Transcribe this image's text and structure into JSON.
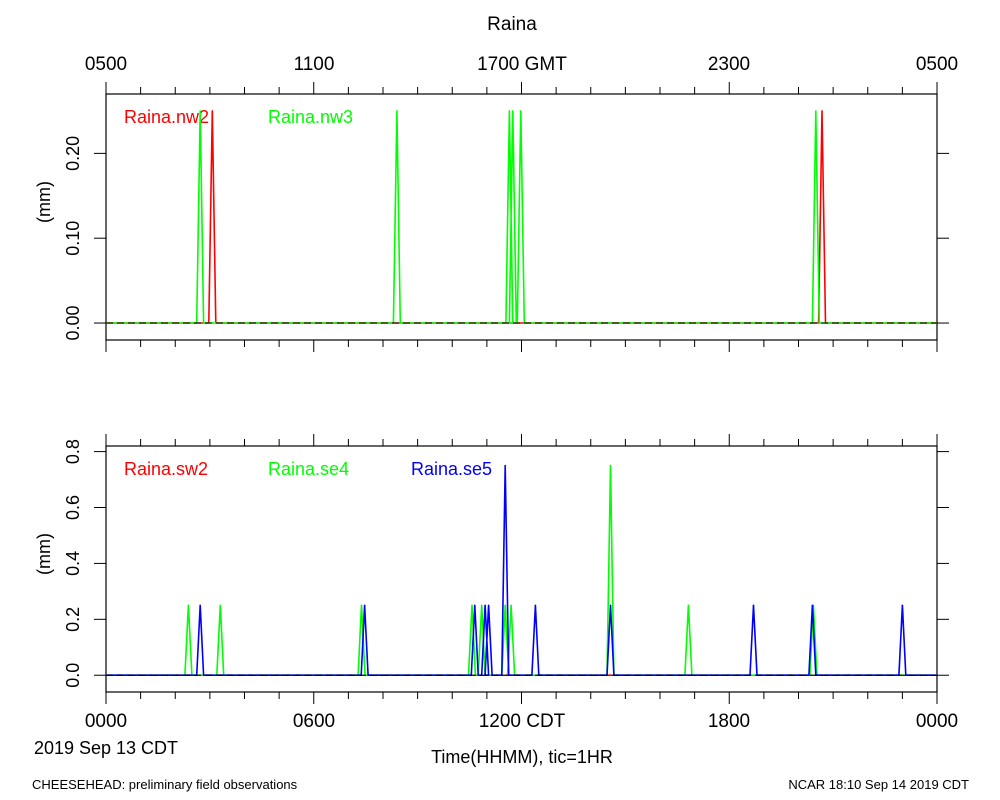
{
  "title": "Raina",
  "top_axis_labels": [
    "0500",
    "1100",
    "1700 GMT",
    "2300",
    "0500"
  ],
  "bottom_axis_labels": [
    "0000",
    "0600",
    "1200 CDT",
    "1800",
    "0000"
  ],
  "date_label": "2019 Sep 13 CDT",
  "xlabel": "Time(HHMM), tic=1HR",
  "footer_left": "CHEESEHEAD: preliminary field observations",
  "footer_right": "NCAR 18:10 Sep 14 2019 CDT",
  "colors": {
    "red": "#ff0000",
    "green": "#00ff00",
    "blue": "#0000ff",
    "axis": "#000000"
  },
  "chart_data": [
    {
      "type": "line",
      "panel": "top",
      "ylabel": "(mm)",
      "xlim": [
        0,
        24
      ],
      "ylim": [
        -0.02,
        0.27
      ],
      "yticks": [
        0.0,
        0.1,
        0.2
      ],
      "ytick_labels": [
        "0.00",
        "0.10",
        "0.20"
      ],
      "legend_position": "top-left",
      "series": [
        {
          "name": "Raina.nw2",
          "color": "#ff0000",
          "zero": 0.0,
          "spikes": [
            [
              3.07,
              0.25
            ],
            [
              20.68,
              0.25
            ]
          ]
        },
        {
          "name": "Raina.nw3",
          "color": "#00ff00",
          "zero": 0.0,
          "spikes": [
            [
              2.72,
              0.25
            ],
            [
              8.4,
              0.25
            ],
            [
              11.65,
              0.25
            ],
            [
              11.75,
              0.25
            ],
            [
              11.98,
              0.25
            ],
            [
              20.5,
              0.25
            ]
          ]
        }
      ]
    },
    {
      "type": "line",
      "panel": "bottom",
      "ylabel": "(mm)",
      "xlim": [
        0,
        24
      ],
      "ylim": [
        -0.06,
        0.82
      ],
      "yticks": [
        0.0,
        0.2,
        0.4,
        0.6,
        0.8
      ],
      "ytick_labels": [
        "0.0",
        "0.2",
        "0.4",
        "0.6",
        "0.8"
      ],
      "legend_position": "top-left",
      "series": [
        {
          "name": "Raina.sw2",
          "color": "#ff0000",
          "zero": 0.0,
          "spikes": []
        },
        {
          "name": "Raina.se4",
          "color": "#00ff00",
          "zero": 0.0,
          "spikes": [
            [
              2.38,
              0.25
            ],
            [
              3.3,
              0.25
            ],
            [
              7.38,
              0.25
            ],
            [
              10.57,
              0.25
            ],
            [
              10.85,
              0.25
            ],
            [
              11.53,
              0.25
            ],
            [
              11.7,
              0.25
            ],
            [
              14.57,
              0.75
            ],
            [
              16.82,
              0.25
            ],
            [
              20.43,
              0.25
            ]
          ]
        },
        {
          "name": "Raina.se5",
          "color": "#0000ff",
          "zero": 0.0,
          "spikes": [
            [
              2.72,
              0.25
            ],
            [
              7.47,
              0.25
            ],
            [
              10.65,
              0.25
            ],
            [
              10.95,
              0.25
            ],
            [
              11.05,
              0.25
            ],
            [
              11.53,
              0.75
            ],
            [
              12.4,
              0.25
            ],
            [
              14.57,
              0.25
            ],
            [
              18.7,
              0.25
            ],
            [
              20.4,
              0.25
            ],
            [
              23.0,
              0.25
            ]
          ]
        }
      ]
    }
  ]
}
